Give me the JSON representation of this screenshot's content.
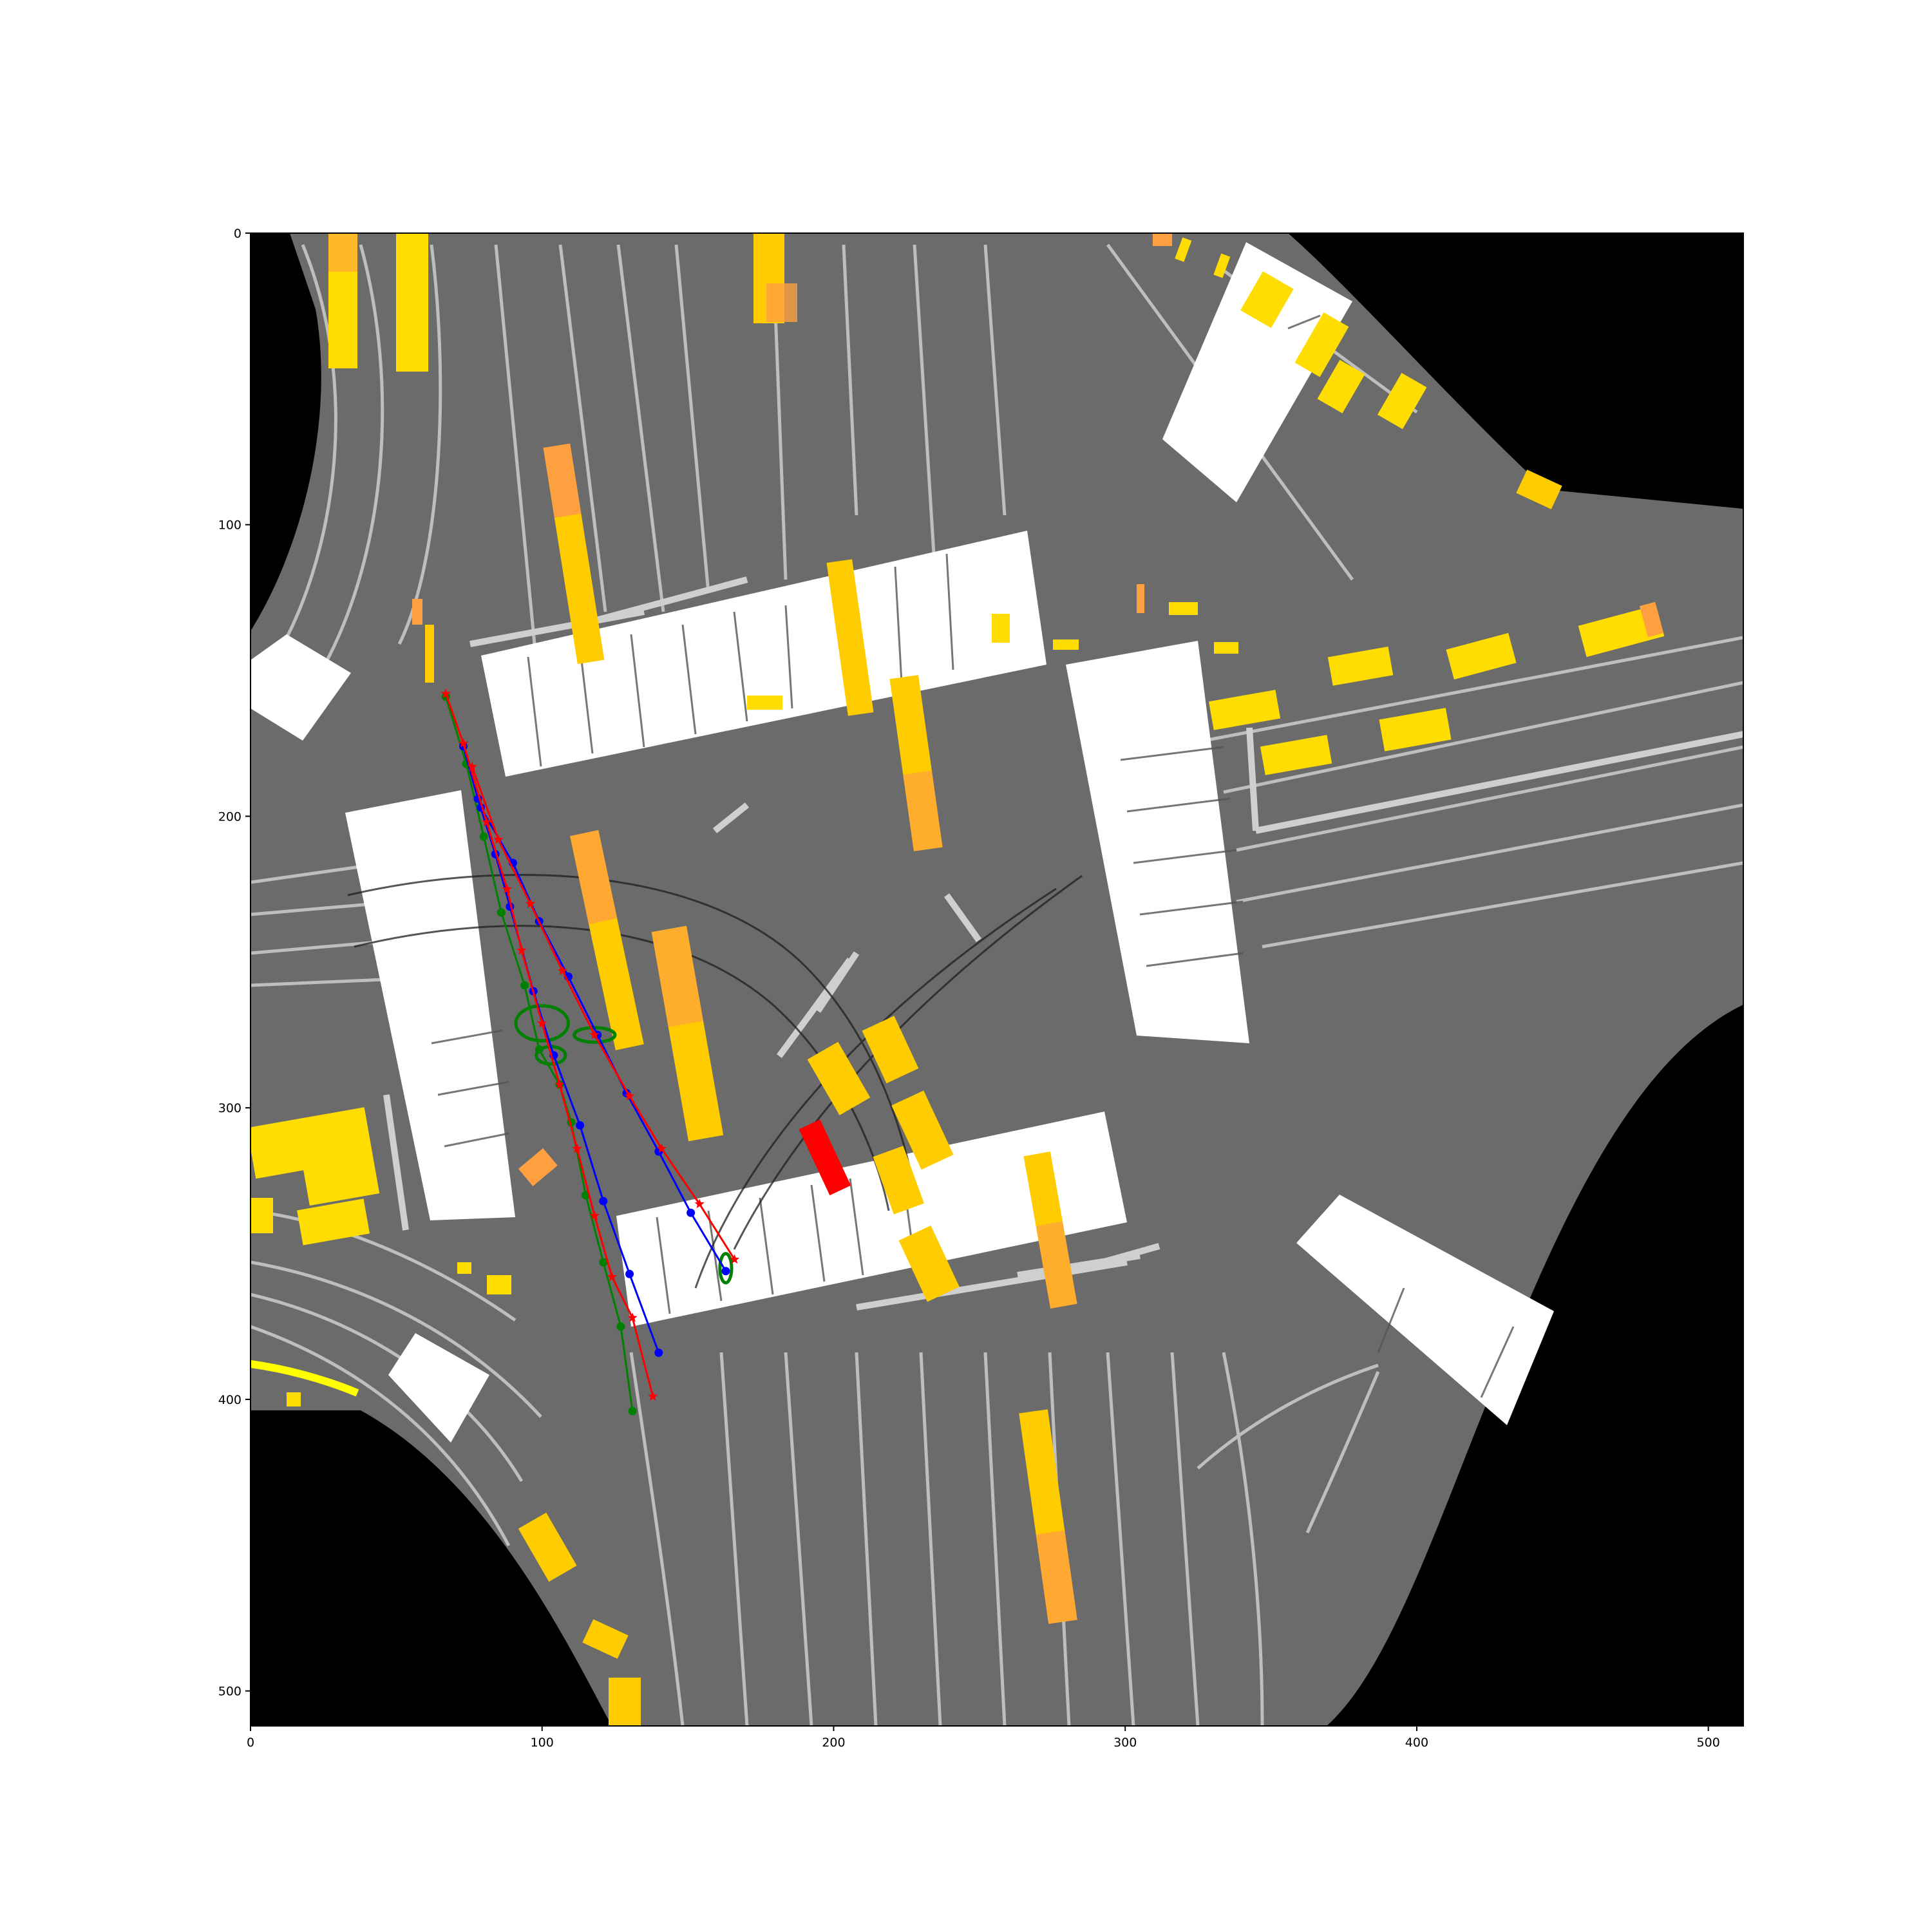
{
  "chart_data": {
    "type": "scatter",
    "title": "",
    "xlabel": "",
    "ylabel": "",
    "xlim": [
      0,
      512
    ],
    "ylim": [
      512,
      0
    ],
    "y_inverted": true,
    "grid": false,
    "x_ticks": [
      0,
      100,
      200,
      300,
      400,
      500
    ],
    "y_ticks": [
      0,
      100,
      200,
      300,
      400,
      500
    ],
    "x_tick_labels": [
      "0",
      "100",
      "200",
      "300",
      "400",
      "500"
    ],
    "y_tick_labels": [
      "0",
      "100",
      "200",
      "300",
      "400",
      "500"
    ],
    "colors": {
      "road": "#6b6b6b",
      "offroad": "#000000",
      "crosswalk": "#ffffff",
      "lane_line": "#c8c8c8",
      "agent_yellow": "#ffdd00",
      "agent_orange": "#ffa040",
      "ego_vehicle": "#ff0000",
      "series_green": "#008000",
      "series_blue": "#0000ff",
      "series_red": "#ff0000"
    },
    "series": [
      {
        "color": "green",
        "marker": "circle",
        "x": [
          67,
          74,
          80,
          86,
          94,
          99,
          106,
          110,
          115,
          121,
          127,
          131
        ],
        "y": [
          159,
          182,
          207,
          233,
          258,
          280,
          292,
          305,
          330,
          353,
          375,
          404
        ]
      },
      {
        "color": "blue",
        "marker": "circle",
        "x": [
          73,
          78,
          84,
          89,
          97,
          104,
          113,
          121,
          130,
          140
        ],
        "y": [
          176,
          194,
          213,
          231,
          260,
          282,
          306,
          332,
          357,
          384
        ]
      },
      {
        "color": "blue",
        "marker": "circle",
        "x": [
          79,
          90,
          99,
          109,
          119,
          129,
          140,
          151,
          163
        ],
        "y": [
          197,
          216,
          236,
          255,
          275,
          295,
          315,
          336,
          356
        ]
      },
      {
        "color": "red",
        "marker": "star",
        "x": [
          67,
          73,
          81,
          88,
          93,
          100,
          106,
          112,
          118,
          124,
          131,
          138
        ],
        "y": [
          158,
          175,
          202,
          225,
          246,
          271,
          292,
          314,
          337,
          358,
          372,
          399
        ]
      },
      {
        "color": "red",
        "marker": "star",
        "x": [
          76,
          85,
          96,
          107,
          118,
          130,
          141,
          154,
          166
        ],
        "y": [
          183,
          208,
          230,
          253,
          275,
          296,
          314,
          333,
          352
        ]
      }
    ],
    "uncertainty_ellipses": [
      {
        "color": "green",
        "cx": 100,
        "cy": 271,
        "rx": 9,
        "ry": 6
      },
      {
        "color": "green",
        "cx": 103,
        "cy": 282,
        "rx": 5,
        "ry": 3
      },
      {
        "color": "green",
        "cx": 118,
        "cy": 275,
        "rx": 7,
        "ry": 2.5
      },
      {
        "color": "green",
        "cx": 163,
        "cy": 355,
        "rx": 2,
        "ry": 5
      }
    ],
    "ego_vehicle": {
      "color": "red",
      "cx": 197,
      "cy": 317,
      "width": 8,
      "length": 25,
      "heading_deg": -25
    }
  }
}
